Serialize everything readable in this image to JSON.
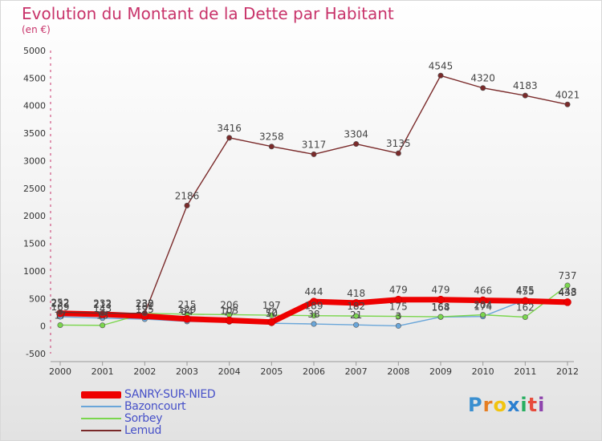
{
  "header": {
    "title": "Evolution du Montant de la Dette par Habitant",
    "subtitle": "(en €)"
  },
  "logo": {
    "text": "Proxiti"
  },
  "chart_data": {
    "type": "line",
    "title": "Evolution du Montant de la Dette par Habitant",
    "subtitle": "(en €)",
    "xlabel": "",
    "ylabel": "",
    "x": [
      "2000",
      "2001",
      "2002",
      "2003",
      "2004",
      "2005",
      "2006",
      "2007",
      "2008",
      "2009",
      "2010",
      "2011",
      "2012"
    ],
    "ylim": [
      -500,
      5000
    ],
    "yticks": [
      -500,
      0,
      500,
      1000,
      1500,
      2000,
      2500,
      3000,
      3500,
      4000,
      4500,
      5000
    ],
    "grid": false,
    "legend_position": "bottom-left",
    "series": [
      {
        "name": "SANRY-SUR-NIED",
        "color": "#ee0000",
        "values": [
          232,
          213,
          181,
          129,
          103,
          72,
          444,
          418,
          479,
          479,
          466,
          455,
          433
        ]
      },
      {
        "name": "Bazoncourt",
        "color": "#6aa6d9",
        "values": [
          169,
          143,
          125,
          84,
          77,
          50,
          38,
          21,
          3,
          164,
          174,
          475,
          448
        ]
      },
      {
        "name": "Sorbey",
        "color": "#7bd64e",
        "values": [
          17,
          13,
          230,
          215,
          206,
          197,
          189,
          182,
          175,
          168,
          204,
          162,
          737
        ]
      },
      {
        "name": "Lemud",
        "color": "#7a2a2a",
        "values": [
          252,
          232,
          232,
          2186,
          3416,
          3258,
          3117,
          3304,
          3135,
          4545,
          4320,
          4183,
          4021
        ]
      }
    ]
  }
}
